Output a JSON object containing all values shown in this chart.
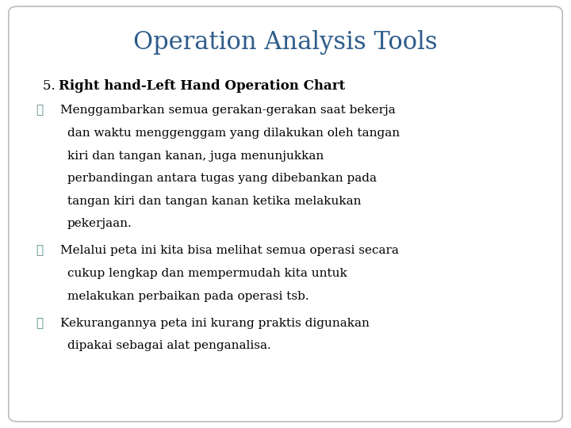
{
  "title": "Operation Analysis Tools",
  "title_color": "#2E5C8A",
  "title_fontsize": 22,
  "background_color": "#FFFFFF",
  "border_color": "#BBBBBB",
  "heading_prefix": "5. ",
  "heading_bold": "Right hand-Left Hand Operation Chart",
  "heading_fontsize": 12,
  "heading_color": "#000000",
  "bullet_symbol": "♻",
  "bullet_color": "#5A8A8A",
  "bullet_fontsize": 11,
  "body_color": "#000000",
  "body_fontsize": 11,
  "bullets": [
    {
      "first_line": "Menggambarkan semua gerakan-gerakan saat bekerja",
      "continuation": [
        "dan waktu menggenggam yang dilakukan oleh tangan",
        "kiri dan tangan kanan, juga menunjukkan",
        "perbandingan antara tugas yang dibebankan pada",
        "tangan kiri dan tangan kanan ketika melakukan",
        "pekerjaan."
      ]
    },
    {
      "first_line": "Melalui peta ini kita bisa melihat semua operasi secara",
      "continuation": [
        "cukup lengkap dan mempermudah kita untuk",
        "melakukan perbaikan pada operasi tsb."
      ]
    },
    {
      "first_line": "Kekurangannya peta ini kurang praktis digunakan",
      "continuation": [
        "dipakai sebagai alat penganalisa."
      ]
    }
  ],
  "figsize": [
    7.2,
    5.4
  ],
  "dpi": 100
}
